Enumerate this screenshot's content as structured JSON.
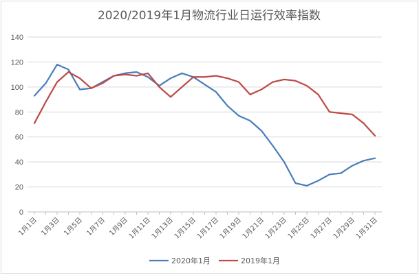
{
  "chart_data": {
    "type": "line",
    "title": "2020/2019年1月物流行业日运行效率指数",
    "xlabel": "",
    "ylabel": "",
    "ylim": [
      0,
      140
    ],
    "yticks": [
      0,
      20,
      40,
      60,
      80,
      100,
      120,
      140
    ],
    "grid": true,
    "legend_position": "bottom",
    "x": [
      "1月1日",
      "1月2日",
      "1月3日",
      "1月4日",
      "1月5日",
      "1月6日",
      "1月7日",
      "1月8日",
      "1月9日",
      "1月10日",
      "1月11日",
      "1月12日",
      "1月13日",
      "1月14日",
      "1月15日",
      "1月16日",
      "1月17日",
      "1月18日",
      "1月19日",
      "1月20日",
      "1月21日",
      "1月22日",
      "1月23日",
      "1月24日",
      "1月25日",
      "1月26日",
      "1月27日",
      "1月28日",
      "1月29日",
      "1月30日",
      "1月31日"
    ],
    "x_tick_labels": [
      "1月1日",
      "1月3日",
      "1月5日",
      "1月7日",
      "1月9日",
      "1月11日",
      "1月13日",
      "1月15日",
      "1月17日",
      "1月19日",
      "1月21日",
      "1月23日",
      "1月25日",
      "1月27日",
      "1月29日",
      "1月31日"
    ],
    "series": [
      {
        "name": "2020年1月",
        "color": "#4a7ebb",
        "values": [
          93,
          103,
          118,
          114,
          98,
          99,
          104,
          109,
          111,
          112,
          108,
          101,
          107,
          111,
          108,
          102,
          96,
          85,
          77,
          73,
          65,
          53,
          40,
          23,
          21,
          25,
          30,
          31,
          37,
          41,
          43
        ]
      },
      {
        "name": "2019年1月",
        "color": "#be4b48",
        "values": [
          71,
          88,
          104,
          112,
          107,
          99,
          103,
          109,
          110,
          109,
          111,
          100,
          92,
          100,
          108,
          108,
          109,
          107,
          104,
          94,
          98,
          104,
          106,
          105,
          101,
          94,
          80,
          79,
          78,
          71,
          61
        ]
      }
    ]
  }
}
